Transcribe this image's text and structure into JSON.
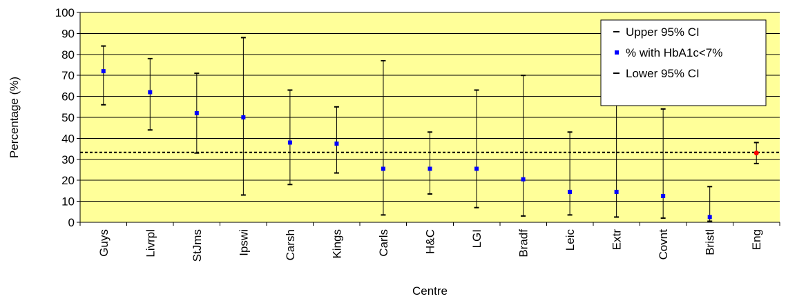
{
  "chart_data": {
    "type": "scatter",
    "xlabel": "Centre",
    "ylabel": "Percentage (%)",
    "ylim": [
      0,
      100
    ],
    "yticks": [
      0,
      10,
      20,
      30,
      40,
      50,
      60,
      70,
      80,
      90,
      100
    ],
    "grid": "horizontal",
    "legend_position": "top-right",
    "categories": [
      "Guys",
      "Livrpl",
      "StJms",
      "Ipswi",
      "Carsh",
      "Kings",
      "Carls",
      "H&C",
      "LGI",
      "Bradf",
      "Leic",
      "Extr",
      "Covnt",
      "Bristl",
      "Eng"
    ],
    "series": [
      {
        "name": "Upper 95% CI",
        "values": [
          84,
          78,
          71,
          88,
          63,
          55,
          77,
          43,
          63,
          70,
          43,
          59,
          54,
          17,
          38
        ]
      },
      {
        "name": "% with HbA1c<7%",
        "values": [
          72,
          62,
          52,
          50,
          38,
          37.5,
          25.5,
          25.5,
          25.5,
          20.5,
          14.5,
          14.5,
          12.5,
          2.5,
          33
        ]
      },
      {
        "name": "Lower 95% CI",
        "values": [
          56,
          44,
          33,
          13,
          18,
          23.5,
          3.5,
          13.5,
          7,
          3,
          3.5,
          2.5,
          2,
          0.5,
          28
        ]
      }
    ],
    "reference_line": 33.3,
    "highlight_category": "Eng",
    "colors": {
      "plot_background": "#FFFF99",
      "point": "#0000FF",
      "highlight_point": "#FF0000",
      "whisker": "#000000",
      "gridline": "#000000",
      "reference_line": "#000000"
    }
  }
}
